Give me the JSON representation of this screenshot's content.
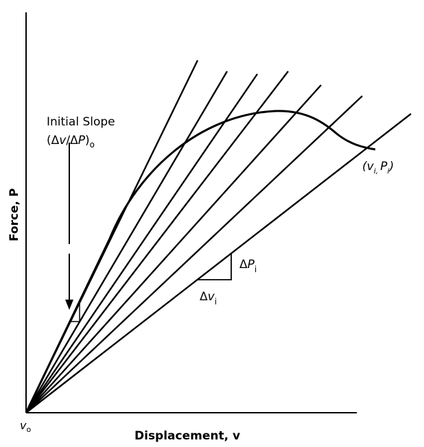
{
  "labels": {
    "y_axis": "Force, P",
    "x_axis": "Displacement, v",
    "origin": {
      "symbol": "v",
      "subscript": "o"
    },
    "initial_slope": {
      "line1": "Initial Slope",
      "line2_open": "(",
      "delta1": "Δ",
      "var1": "v",
      "slash": "/",
      "delta2": "Δ",
      "var2": "P",
      "close": ")",
      "subscript": "o"
    },
    "delta_p": {
      "delta": "Δ",
      "var": "P",
      "subscript": "i"
    },
    "delta_v": {
      "delta": "Δ",
      "var": "v",
      "subscript": "i"
    },
    "point": {
      "open": "(",
      "var1": "v",
      "sub1": "i,",
      "var2": "P",
      "sub2": "i",
      "close": ")"
    }
  }
}
